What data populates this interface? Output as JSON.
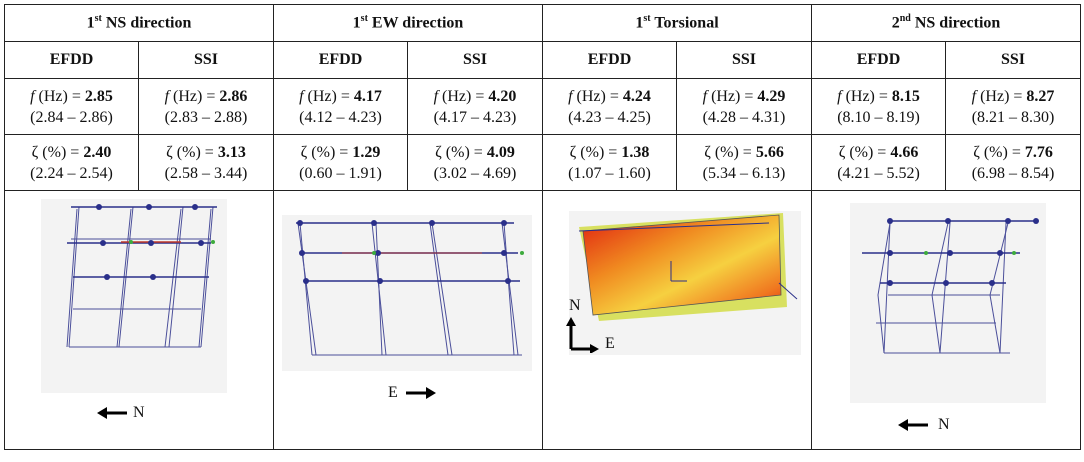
{
  "modes": [
    {
      "title_main": "1",
      "title_sup": "st",
      "title_rest": " NS direction",
      "efdd": {
        "f": "2.85",
        "f_range": "(2.84 – 2.86)",
        "z": "2.40",
        "z_range": "(2.24 – 2.54)"
      },
      "ssi": {
        "f": "2.86",
        "f_range": "(2.83 – 2.88)",
        "z": "3.13",
        "z_range": "(2.58 – 3.44)"
      },
      "direction_label": "N"
    },
    {
      "title_main": "1",
      "title_sup": "st",
      "title_rest": " EW direction",
      "efdd": {
        "f": "4.17",
        "f_range": "(4.12 – 4.23)",
        "z": "1.29",
        "z_range": "(0.60 – 1.91)"
      },
      "ssi": {
        "f": "4.20",
        "f_range": "(4.17 – 4.23)",
        "z": "4.09",
        "z_range": "(3.02 – 4.69)"
      },
      "direction_label": "E"
    },
    {
      "title_main": "1",
      "title_sup": "st",
      "title_rest": " Torsional",
      "efdd": {
        "f": "4.24",
        "f_range": "(4.23 – 4.25)",
        "z": "1.38",
        "z_range": "(1.07 – 1.60)"
      },
      "ssi": {
        "f": "4.29",
        "f_range": "(4.28 – 4.31)",
        "z": "5.66",
        "z_range": "(5.34 – 6.13)"
      },
      "axis_n": "N",
      "axis_e": "E"
    },
    {
      "title_main": "2",
      "title_sup": "nd",
      "title_rest": " NS direction",
      "efdd": {
        "f": "8.15",
        "f_range": "(8.10 – 8.19)",
        "z": "4.66",
        "z_range": "(4.21 – 5.52)"
      },
      "ssi": {
        "f": "8.27",
        "f_range": "(8.21 – 8.30)",
        "z": "7.76",
        "z_range": "(6.98 – 8.54)"
      },
      "direction_label": "N"
    }
  ],
  "method_efdd": "EFDD",
  "method_ssi": "SSI",
  "f_prefix_sym": "f",
  "f_prefix_unit": " (Hz) = ",
  "z_prefix": "ζ (%) = "
}
